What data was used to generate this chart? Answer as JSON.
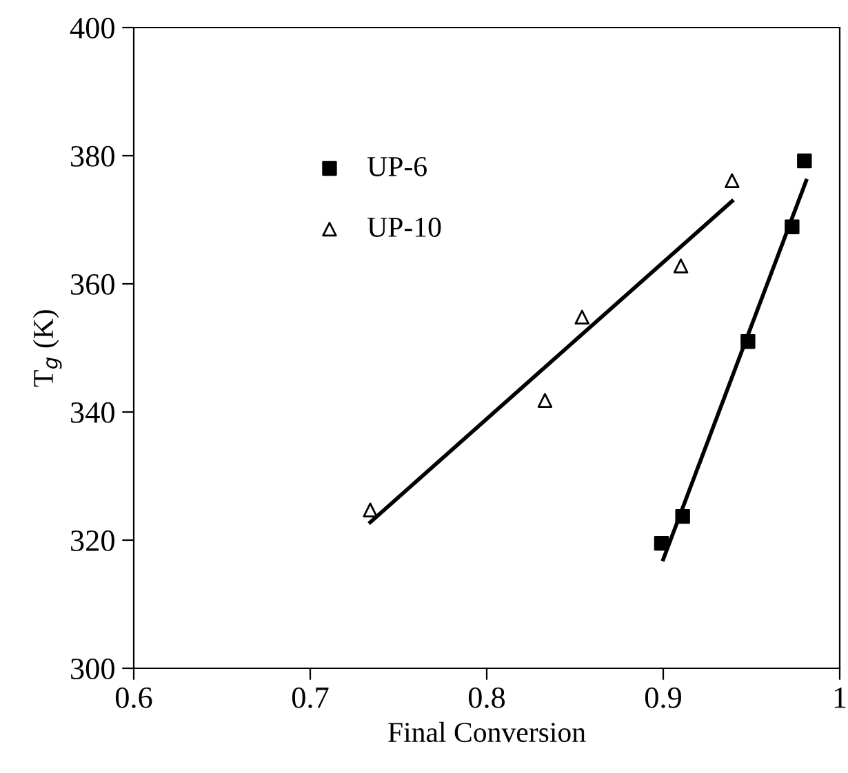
{
  "chart_data": {
    "type": "scatter",
    "xlabel": "Final Conversion",
    "ylabel": "T$_{g}$ (K)",
    "xlim": [
      0.6,
      1
    ],
    "xticks": [
      0.6,
      0.7,
      0.8,
      0.9,
      {
        "value": 1,
        "label": "1"
      }
    ],
    "ylim": [
      300,
      400
    ],
    "yticks": [
      300,
      320,
      340,
      360,
      380,
      400
    ],
    "grid": false,
    "legend": "top left",
    "series": [
      {
        "name": "UP-6",
        "marker": "square",
        "color": "#000000",
        "x": [
          0.899,
          0.911,
          0.948,
          0.973,
          0.98
        ],
        "values": [
          319.5,
          323.7,
          351.0,
          368.9,
          379.2
        ]
      },
      {
        "name": "UP-10",
        "marker": "triangle",
        "color": "#000000",
        "x": [
          0.734,
          0.833,
          0.854,
          0.91,
          0.939
        ],
        "values": [
          324.7,
          341.8,
          354.8,
          362.8,
          376.1
        ]
      },
      {
        "type": "line",
        "marker": "none",
        "line_style": "solid",
        "color": "#000000",
        "x": [
          0.734,
          0.939
        ],
        "values": [
          322.8,
          372.9
        ]
      },
      {
        "type": "line",
        "marker": "none",
        "line_style": "solid",
        "color": "#000000",
        "x": [
          0.9,
          0.981
        ],
        "values": [
          317.0,
          376.1
        ]
      }
    ]
  }
}
